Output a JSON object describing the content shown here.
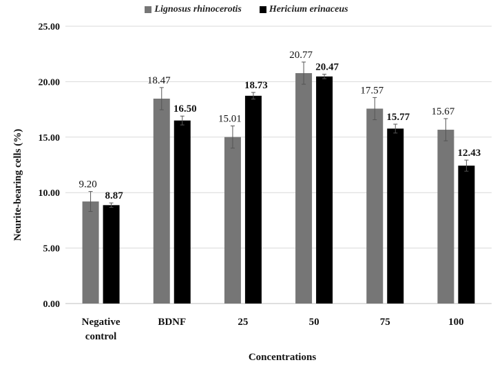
{
  "chart_data": {
    "type": "bar",
    "categories": [
      "Negative control",
      "BDNF",
      "25",
      "50",
      "75",
      "100"
    ],
    "category_lines": [
      [
        "Negative",
        "control"
      ],
      [
        "BDNF"
      ],
      [
        "25"
      ],
      [
        "50"
      ],
      [
        "75"
      ],
      [
        "100"
      ]
    ],
    "series": [
      {
        "name": "Lignosus rhinocerotis",
        "color": "#767676",
        "values": [
          9.2,
          18.47,
          15.01,
          20.77,
          17.57,
          15.67
        ],
        "labels": [
          "9.20",
          "18.47",
          "15.01",
          "20.77",
          "17.57",
          "15.67"
        ],
        "errors": [
          0.9,
          1.0,
          1.0,
          1.0,
          1.0,
          1.0
        ]
      },
      {
        "name": "Hericium erinaceus",
        "color": "#000000",
        "values": [
          8.87,
          16.5,
          18.73,
          20.47,
          15.77,
          12.43
        ],
        "labels": [
          "8.87",
          "16.50",
          "18.73",
          "20.47",
          "15.77",
          "12.43"
        ],
        "errors": [
          0.2,
          0.4,
          0.3,
          0.2,
          0.4,
          0.5
        ]
      }
    ],
    "xlabel": "Concentrations",
    "ylabel": "Neurite-bearing cells (%)",
    "ylim": [
      0,
      25
    ],
    "yticks": [
      "0.00",
      "5.00",
      "10.00",
      "15.00",
      "20.00",
      "25.00"
    ],
    "grid": true,
    "legend_position": "top"
  }
}
